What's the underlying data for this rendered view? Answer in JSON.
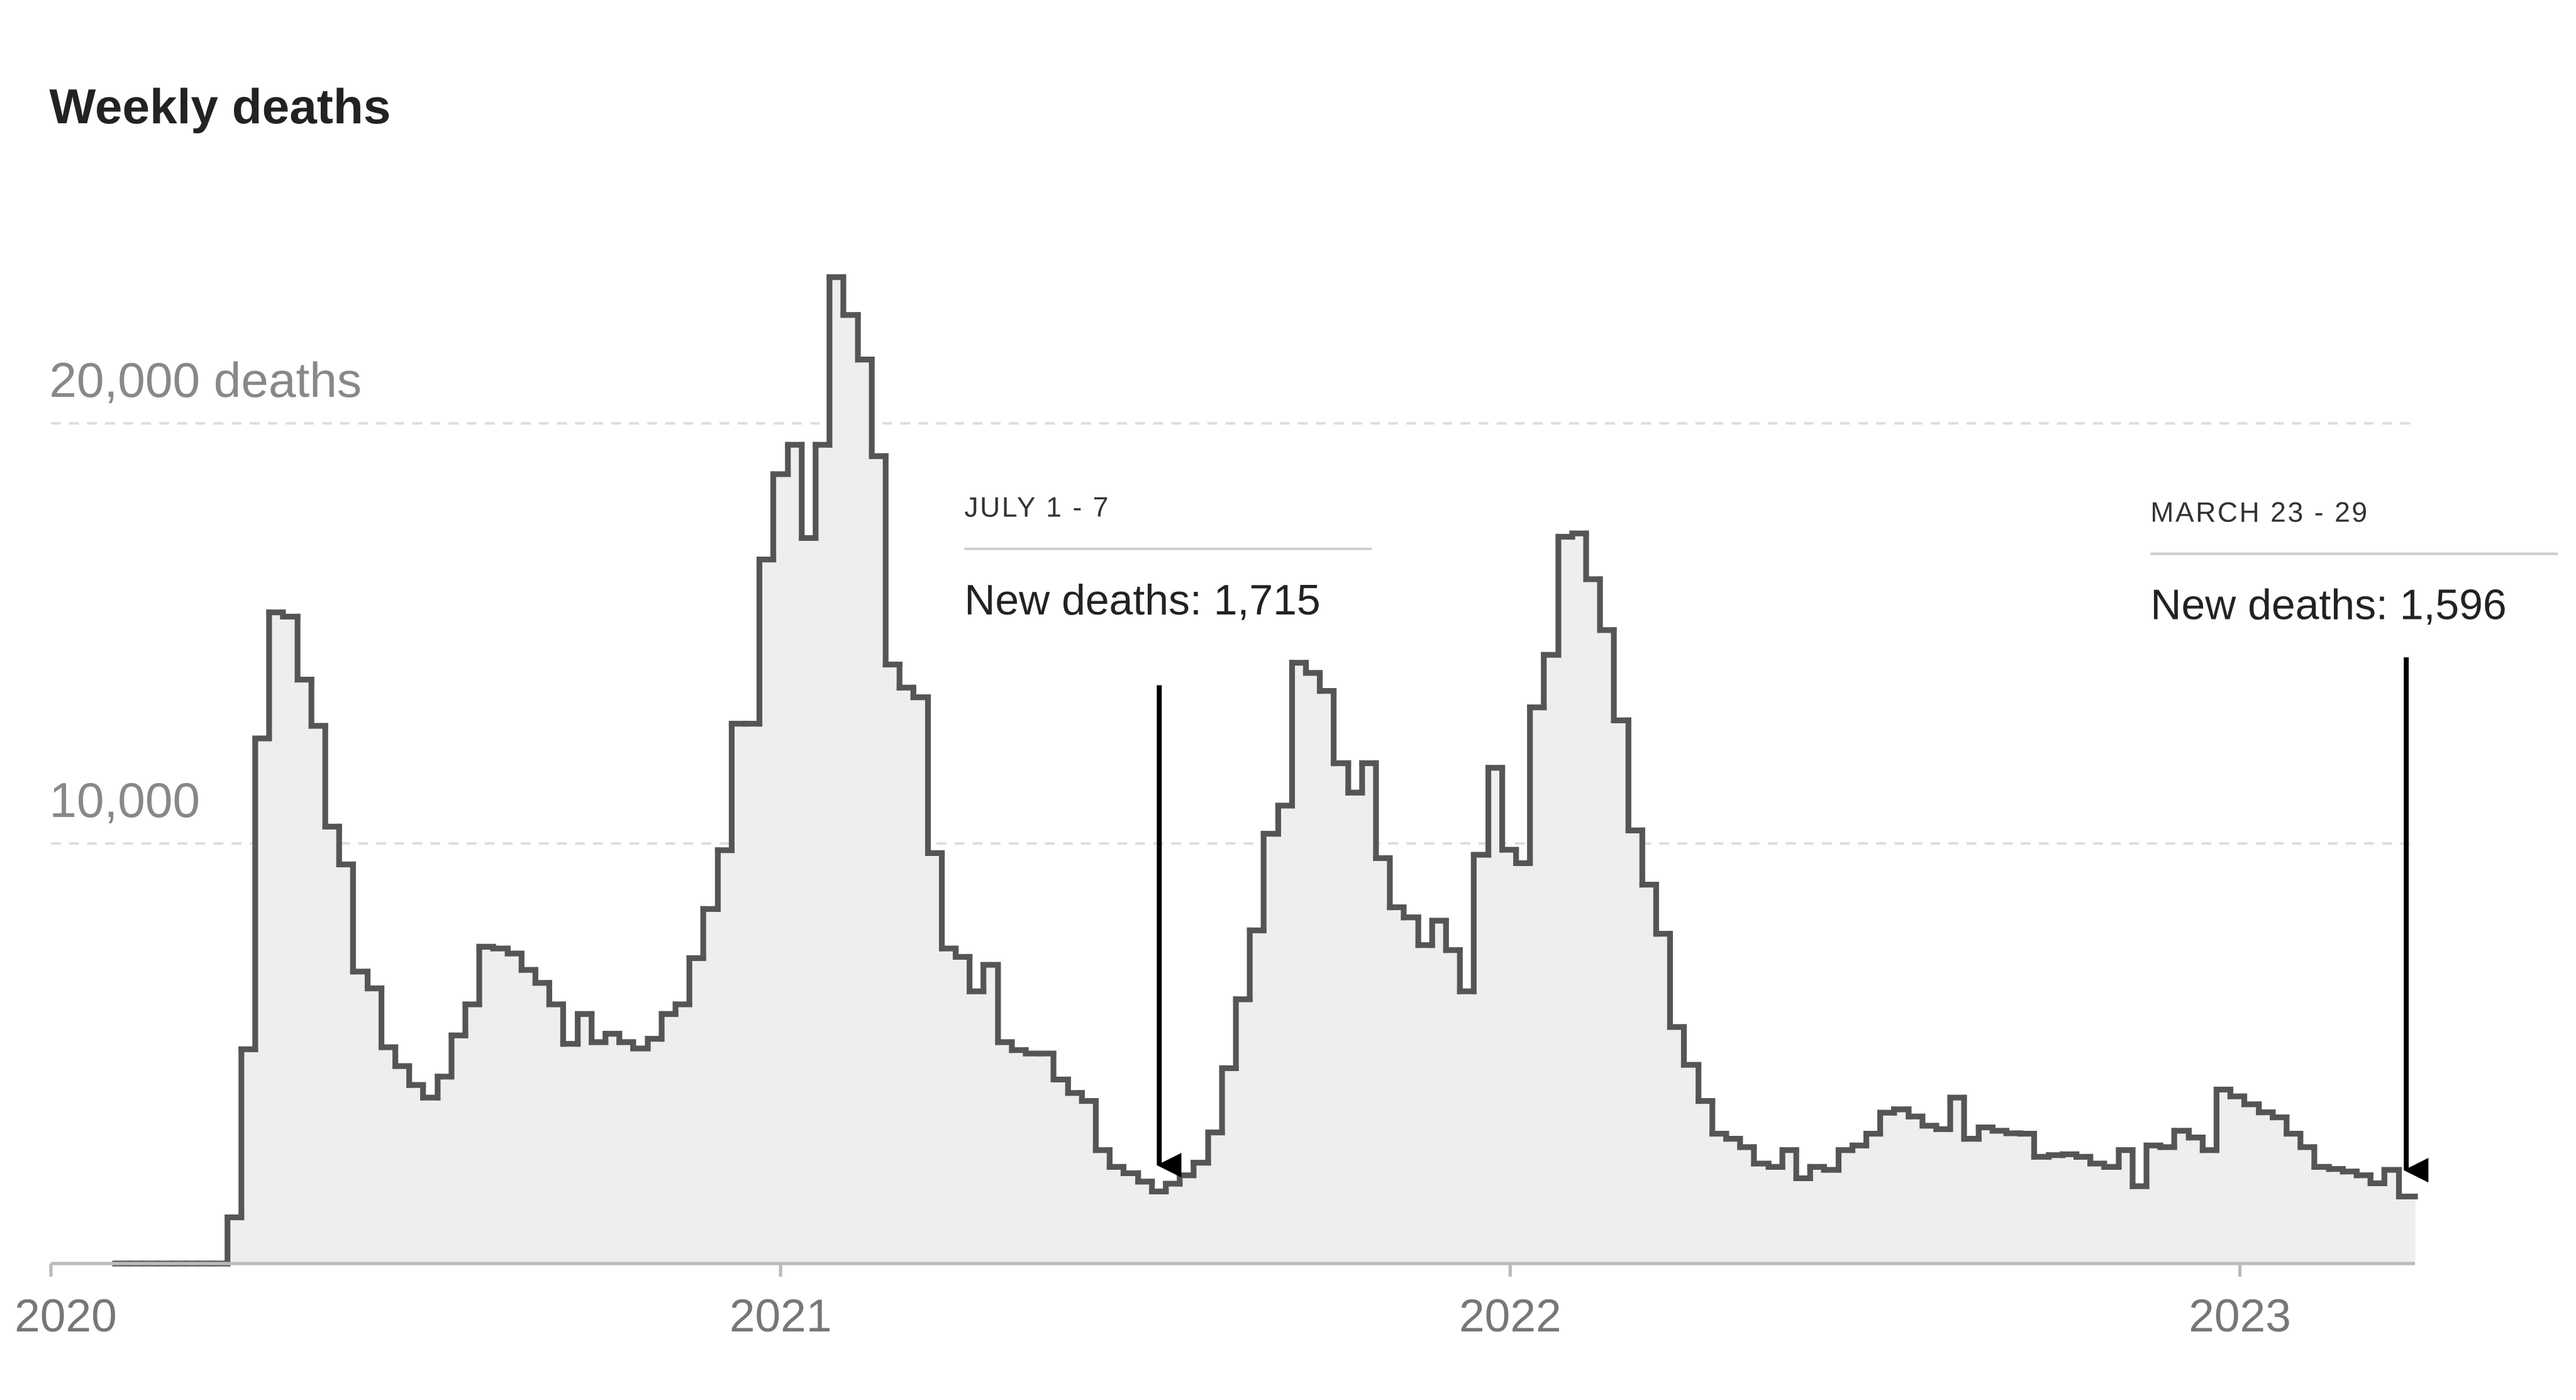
{
  "chart_data": {
    "type": "step",
    "title": "Weekly deaths",
    "series": [
      {
        "name": "Weekly deaths",
        "color": "#555555",
        "fill": "#eeeeee",
        "x": [
          2020.088,
          2020.107,
          2020.126,
          2020.146,
          2020.165,
          2020.184,
          2020.203,
          2020.222,
          2020.242,
          2020.261,
          2020.28,
          2020.299,
          2020.318,
          2020.338,
          2020.357,
          2020.376,
          2020.395,
          2020.414,
          2020.434,
          2020.453,
          2020.472,
          2020.491,
          2020.51,
          2020.53,
          2020.549,
          2020.568,
          2020.587,
          2020.606,
          2020.626,
          2020.645,
          2020.664,
          2020.683,
          2020.702,
          2020.722,
          2020.741,
          2020.76,
          2020.779,
          2020.798,
          2020.818,
          2020.837,
          2020.856,
          2020.875,
          2020.894,
          2020.914,
          2020.933,
          2020.952,
          2020.971,
          2020.99,
          2021.01,
          2021.029,
          2021.048,
          2021.067,
          2021.086,
          2021.106,
          2021.125,
          2021.144,
          2021.163,
          2021.182,
          2021.202,
          2021.221,
          2021.24,
          2021.259,
          2021.278,
          2021.298,
          2021.317,
          2021.336,
          2021.355,
          2021.374,
          2021.394,
          2021.413,
          2021.432,
          2021.451,
          2021.47,
          2021.49,
          2021.509,
          2021.528,
          2021.547,
          2021.566,
          2021.586,
          2021.605,
          2021.624,
          2021.643,
          2021.662,
          2021.682,
          2021.701,
          2021.72,
          2021.739,
          2021.758,
          2021.778,
          2021.797,
          2021.816,
          2021.835,
          2021.854,
          2021.874,
          2021.893,
          2021.912,
          2021.931,
          2021.95,
          2021.97,
          2021.989,
          2022.008,
          2022.027,
          2022.046,
          2022.066,
          2022.085,
          2022.104,
          2022.123,
          2022.142,
          2022.162,
          2022.181,
          2022.2,
          2022.219,
          2022.238,
          2022.258,
          2022.277,
          2022.296,
          2022.315,
          2022.334,
          2022.354,
          2022.373,
          2022.392,
          2022.411,
          2022.43,
          2022.45,
          2022.469,
          2022.488,
          2022.507,
          2022.526,
          2022.546,
          2022.565,
          2022.584,
          2022.603,
          2022.622,
          2022.642,
          2022.661,
          2022.68,
          2022.699,
          2022.718,
          2022.738,
          2022.757,
          2022.776,
          2022.795,
          2022.814,
          2022.834,
          2022.853,
          2022.872,
          2022.891,
          2022.91,
          2022.93,
          2022.949,
          2022.968,
          2022.987,
          2023.006,
          2023.026,
          2023.045,
          2023.064,
          2023.083,
          2023.102,
          2023.122,
          2023.141,
          2023.16,
          2023.179,
          2023.198,
          2023.218
        ],
        "values": [
          0,
          0,
          0,
          0,
          0,
          0,
          0,
          0,
          1100,
          5100,
          12500,
          15500,
          15400,
          13900,
          12800,
          10400,
          9500,
          6950,
          6550,
          5150,
          4700,
          4250,
          3950,
          4450,
          5430,
          6170,
          7540,
          7500,
          7380,
          6990,
          6680,
          6170,
          5230,
          5940,
          5270,
          5470,
          5270,
          5120,
          5350,
          5940,
          6170,
          7270,
          8440,
          9840,
          12850,
          12850,
          16760,
          18790,
          19490,
          17270,
          19490,
          23480,
          22580,
          21520,
          19220,
          14260,
          13710,
          13480,
          9770,
          7500,
          7300,
          6480,
          7110,
          5270,
          5080,
          5000,
          5000,
          4380,
          4060,
          3870,
          2700,
          2300,
          2150,
          1950,
          1715,
          1900,
          2100,
          2400,
          3120,
          4650,
          6290,
          7930,
          10230,
          10900,
          14300,
          14060,
          13630,
          11910,
          11210,
          11910,
          9650,
          8480,
          8240,
          7580,
          8160,
          7460,
          6480,
          9730,
          11800,
          9850,
          9530,
          13240,
          14490,
          17300,
          17380,
          16290,
          15080,
          12930,
          10310,
          9020,
          7850,
          5630,
          4730,
          3870,
          3090,
          2970,
          2770,
          2380,
          2300,
          2700,
          2030,
          2300,
          2230,
          2700,
          2810,
          3090,
          3590,
          3670,
          3500,
          3280,
          3200,
          3950,
          2970,
          3240,
          3160,
          3100,
          3090,
          2540,
          2580,
          2600,
          2540,
          2380,
          2300,
          2700,
          1840,
          2810,
          2770,
          3160,
          3000,
          2700,
          4140,
          3980,
          3790,
          3600,
          3480,
          3090,
          2770,
          2300,
          2250,
          2190,
          2100,
          1910,
          2230,
          1596
        ]
      }
    ],
    "xlim": [
      2020,
      2023.24
    ],
    "xticks": [
      2020,
      2021,
      2022,
      2023
    ],
    "ylim": [
      0,
      24600
    ],
    "yticks": [
      {
        "value": 10000,
        "label": "10,000"
      },
      {
        "value": 20000,
        "label": "20,000 deaths"
      }
    ],
    "grid": true,
    "annotations": [
      {
        "date": "JULY 1 - 7",
        "text": "New deaths: 1,715",
        "x": 2021.519,
        "y": 1715
      },
      {
        "date": "MARCH 23 - 29",
        "text": "New deaths: 1,596",
        "x": 2023.228,
        "y": 1596
      }
    ]
  }
}
